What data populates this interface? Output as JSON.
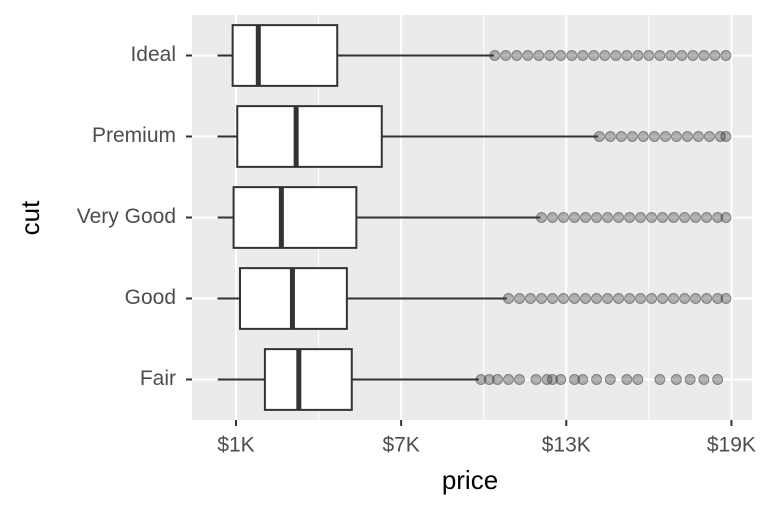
{
  "chart_data": {
    "type": "boxplot",
    "orientation": "horizontal",
    "x_label": "price",
    "y_label": "cut",
    "categories": [
      "Ideal",
      "Premium",
      "Very Good",
      "Good",
      "Fair"
    ],
    "boxes": [
      {
        "min": 326,
        "q1": 878,
        "median": 1810,
        "q3": 4678,
        "max": 10370,
        "outliers": [
          10400,
          10800,
          11200,
          11600,
          12000,
          12400,
          12800,
          13200,
          13600,
          14000,
          14400,
          14800,
          15200,
          15600,
          16000,
          16400,
          16800,
          17200,
          17600,
          18000,
          18400,
          18800
        ]
      },
      {
        "min": 326,
        "q1": 1046,
        "median": 3185,
        "q3": 6296,
        "max": 14160,
        "outliers": [
          14200,
          14600,
          15000,
          15400,
          15800,
          16200,
          16600,
          17000,
          17400,
          17800,
          18200,
          18600,
          18800
        ]
      },
      {
        "min": 336,
        "q1": 912,
        "median": 2648,
        "q3": 5373,
        "max": 12060,
        "outliers": [
          12100,
          12500,
          12900,
          13300,
          13700,
          14100,
          14500,
          14900,
          15300,
          15700,
          16100,
          16500,
          16900,
          17300,
          17700,
          18100,
          18500,
          18800
        ]
      },
      {
        "min": 327,
        "q1": 1145,
        "median": 3050,
        "q3": 5028,
        "max": 10840,
        "outliers": [
          10900,
          11300,
          11700,
          12100,
          12500,
          12900,
          13300,
          13700,
          14100,
          14500,
          14900,
          15300,
          15700,
          16100,
          16500,
          16900,
          17300,
          17700,
          18100,
          18500,
          18800
        ]
      },
      {
        "min": 337,
        "q1": 2050,
        "median": 3282,
        "q3": 5206,
        "max": 9823,
        "outliers": [
          9900,
          10200,
          10500,
          10900,
          11300,
          11900,
          12300,
          12500,
          12800,
          13300,
          13600,
          14100,
          14600,
          15200,
          15600,
          16400,
          17000,
          17500,
          18000,
          18500
        ]
      }
    ],
    "color": "#333333",
    "xlim": [
      -599,
      19748
    ],
    "xticks": [
      {
        "value": 1000,
        "label": "$1K"
      },
      {
        "value": 7000,
        "label": "$7K"
      },
      {
        "value": 13000,
        "label": "$13K"
      },
      {
        "value": 19000,
        "label": "$19K"
      }
    ],
    "minor_xticks": [
      4000,
      10000,
      16000
    ],
    "grid": true
  }
}
